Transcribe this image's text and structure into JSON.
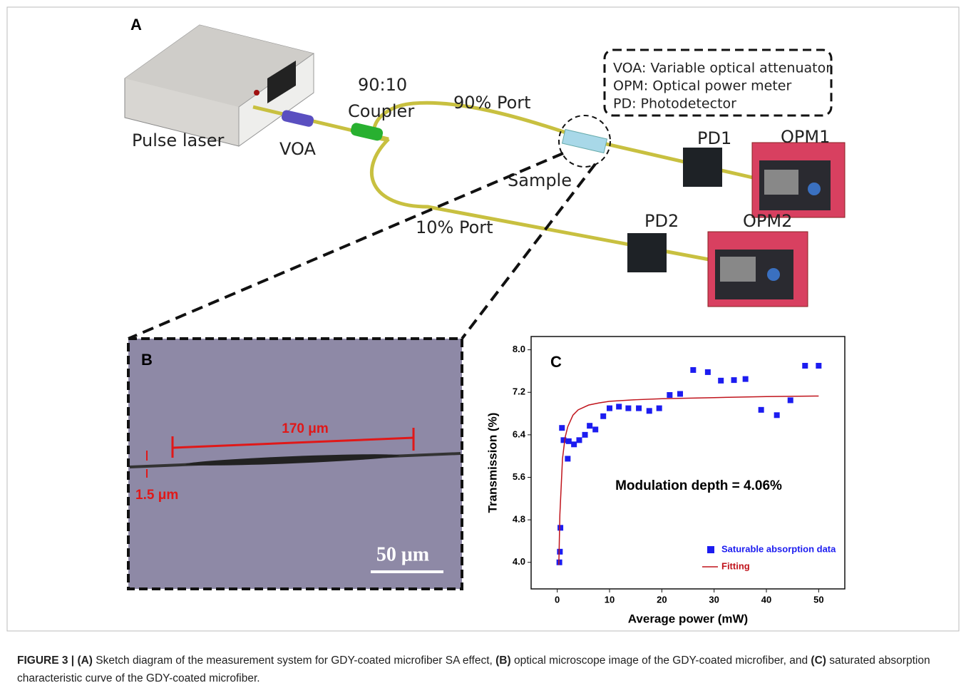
{
  "panel_a": {
    "label": "A",
    "pulse_laser": "Pulse laser",
    "voa": "VOA",
    "coupler_ratio": "90:10",
    "coupler": "Coupler",
    "port_90": "90% Port",
    "port_10": "10% Port",
    "sample": "Sample",
    "pd1": "PD1",
    "pd2": "PD2",
    "opm1": "OPM1",
    "opm2": "OPM2",
    "legend": [
      "VOA: Variable optical attenuator",
      "OPM: Optical power meter",
      "PD: Photodetector"
    ]
  },
  "panel_b": {
    "label": "B",
    "length": "170 μm",
    "diameter": "1.5 μm",
    "scale_bar": "50 μm"
  },
  "chart_data": {
    "type": "scatter",
    "panel_label": "C",
    "annotation": "Modulation depth = 4.06%",
    "x_label": "Average power (mW)",
    "y_label": "Transmission (%)",
    "xlim": [
      -5,
      55
    ],
    "ylim": [
      3.5,
      8.25
    ],
    "xticks": [
      0,
      10,
      20,
      30,
      40,
      50
    ],
    "yticks": [
      {
        "value": 4,
        "label": "4.0"
      },
      {
        "value": 4.8,
        "label": "4.8"
      },
      {
        "value": 5.6,
        "label": "5.6"
      },
      {
        "value": 6.4,
        "label": "6.4"
      },
      {
        "value": 7.2,
        "label": "7.2"
      },
      {
        "value": 8,
        "label": "8.0"
      }
    ],
    "legend": "lower right",
    "series": [
      {
        "name": "Saturable absorption data",
        "color": "#1c1cf0",
        "style": "markers",
        "x": [
          0.4,
          0.5,
          0.6,
          0.9,
          1.2,
          2.0,
          2.2,
          3.2,
          4.2,
          5.3,
          6.2,
          7.3,
          8.8,
          10,
          11.8,
          13.6,
          15.6,
          17.6,
          19.5,
          21.5,
          23.5,
          26,
          28.8,
          31.3,
          33.8,
          36,
          39,
          42,
          44.6,
          47.4,
          50
        ],
        "values": [
          4.0,
          4.2,
          4.65,
          6.53,
          6.3,
          5.95,
          6.28,
          6.22,
          6.3,
          6.4,
          6.57,
          6.5,
          6.75,
          6.9,
          6.93,
          6.9,
          6.9,
          6.85,
          6.9,
          7.15,
          7.17,
          7.62,
          7.58,
          7.42,
          7.43,
          7.45,
          6.87,
          6.77,
          7.05,
          7.7,
          7.7
        ]
      },
      {
        "name": "Fitting",
        "color": "#c0141c",
        "style": "line",
        "x": [
          0.3,
          0.5,
          1,
          1.5,
          2,
          3,
          4,
          6,
          8,
          10,
          15,
          20,
          30,
          40,
          50
        ],
        "values": [
          3.95,
          4.9,
          5.95,
          6.35,
          6.55,
          6.77,
          6.87,
          6.96,
          7.0,
          7.03,
          7.06,
          7.08,
          7.1,
          7.12,
          7.13
        ]
      }
    ]
  },
  "caption": {
    "figure_label": "FIGURE 3 |",
    "parts": [
      {
        "label": "(A)",
        "text": "Sketch diagram of the measurement system for GDY-coated microfiber SA effect,"
      },
      {
        "label": "(B)",
        "text": "optical microscope image of the GDY-coated microfiber, and"
      },
      {
        "label": "(C)",
        "text": "saturated absorption characteristic curve of the GDY-coated microfiber."
      }
    ]
  }
}
